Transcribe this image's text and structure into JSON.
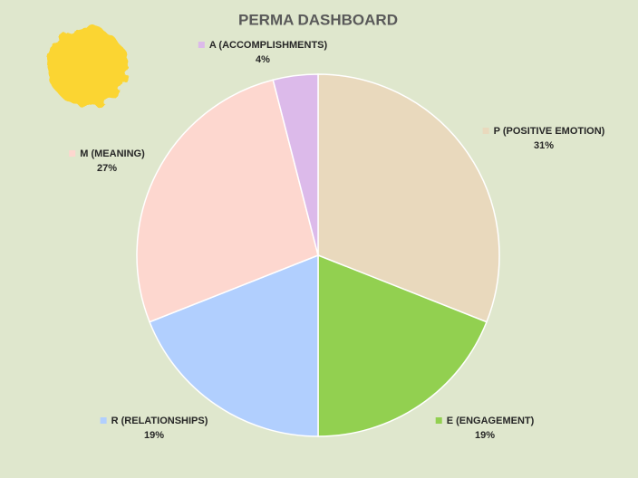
{
  "chart_data": {
    "type": "pie",
    "title": "PERMA DASHBOARD",
    "categories": [
      "P (POSITIVE EMOTION)",
      "E (ENGAGEMENT)",
      "R (RELATIONSHIPS)",
      "M (MEANING)",
      "A (ACCOMPLISHMENTS)"
    ],
    "values": [
      31,
      19,
      19,
      27,
      4
    ],
    "value_labels": [
      "31%",
      "19%",
      "19%",
      "27%",
      "4%"
    ],
    "colors": [
      "#e9d9bd",
      "#92d050",
      "#b1cffe",
      "#fdd7cf",
      "#dcbaea"
    ]
  }
}
